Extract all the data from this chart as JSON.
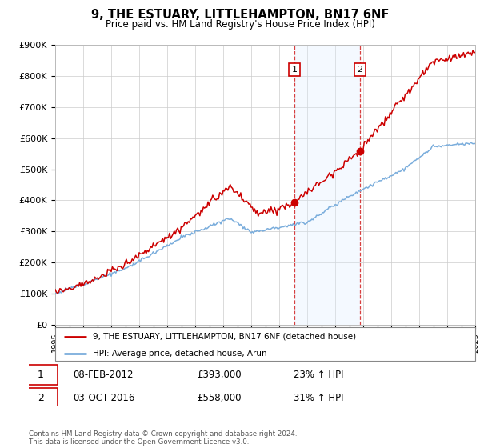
{
  "title": "9, THE ESTUARY, LITTLEHAMPTON, BN17 6NF",
  "subtitle": "Price paid vs. HM Land Registry's House Price Index (HPI)",
  "ylim": [
    0,
    900000
  ],
  "yticks": [
    0,
    100000,
    200000,
    300000,
    400000,
    500000,
    600000,
    700000,
    800000,
    900000
  ],
  "ytick_labels": [
    "£0",
    "£100K",
    "£200K",
    "£300K",
    "£400K",
    "£500K",
    "£600K",
    "£700K",
    "£800K",
    "£900K"
  ],
  "sale1_date": 2012.1,
  "sale1_label": "1",
  "sale1_price": 393000,
  "sale2_date": 2016.75,
  "sale2_label": "2",
  "sale2_price": 558000,
  "red_line_color": "#cc0000",
  "blue_line_color": "#7aaddc",
  "shade_color": "#ddeeff",
  "grid_color": "#cccccc",
  "legend1": "9, THE ESTUARY, LITTLEHAMPTON, BN17 6NF (detached house)",
  "legend2": "HPI: Average price, detached house, Arun",
  "table_row1_num": "1",
  "table_row1_date": "08-FEB-2012",
  "table_row1_price": "£393,000",
  "table_row1_hpi": "23% ↑ HPI",
  "table_row2_num": "2",
  "table_row2_date": "03-OCT-2016",
  "table_row2_price": "£558,000",
  "table_row2_hpi": "31% ↑ HPI",
  "footnote": "Contains HM Land Registry data © Crown copyright and database right 2024.\nThis data is licensed under the Open Government Licence v3.0.",
  "xstart": 1995,
  "xend": 2025
}
